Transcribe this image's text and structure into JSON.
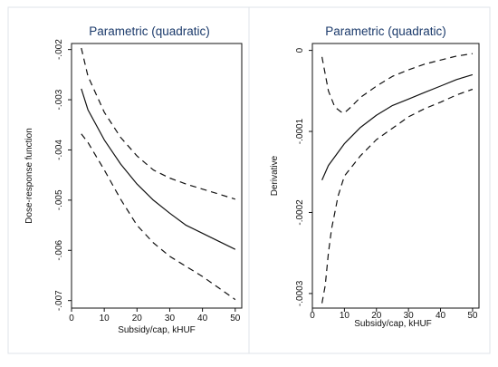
{
  "chart_data": [
    {
      "type": "line",
      "title": "Parametric (quadratic)",
      "xlabel": "Subsidy/cap, kHUF",
      "ylabel": "Dose-response function",
      "xlim": [
        0,
        52
      ],
      "ylim": [
        -0.00715,
        -0.00188
      ],
      "x_ticks": [
        0,
        10,
        20,
        30,
        40,
        50
      ],
      "x_tick_labels": [
        "0",
        "10",
        "20",
        "30",
        "40",
        "50"
      ],
      "y_ticks": [
        -0.007,
        -0.006,
        -0.005,
        -0.004,
        -0.003,
        -0.002
      ],
      "y_tick_labels": [
        "-.007",
        "-.006",
        "-.005",
        "-.004",
        "-.003",
        "-.002"
      ],
      "grid": false,
      "series": [
        {
          "style": "solid",
          "x": [
            3,
            5,
            10,
            15,
            20,
            25,
            30,
            35,
            40,
            45,
            50
          ],
          "y": [
            -0.00278,
            -0.0032,
            -0.0038,
            -0.00428,
            -0.00468,
            -0.005,
            -0.00526,
            -0.0055,
            -0.00566,
            -0.00582,
            -0.00598
          ]
        },
        {
          "style": "dashed",
          "x": [
            3,
            5,
            10,
            15,
            20,
            25,
            30,
            35,
            40,
            45,
            50
          ],
          "y": [
            -0.00197,
            -0.00253,
            -0.00325,
            -0.00375,
            -0.00412,
            -0.0044,
            -0.00456,
            -0.00468,
            -0.00478,
            -0.00488,
            -0.00498
          ]
        },
        {
          "style": "dashed",
          "x": [
            3,
            5,
            10,
            15,
            20,
            25,
            30,
            35,
            40,
            45,
            50
          ],
          "y": [
            -0.00368,
            -0.00385,
            -0.0044,
            -0.00498,
            -0.0055,
            -0.00585,
            -0.00612,
            -0.00632,
            -0.00652,
            -0.00675,
            -0.00698
          ]
        }
      ]
    },
    {
      "type": "line",
      "title": "Parametric (quadratic)",
      "xlabel": "Subsidy/cap, kHUF",
      "ylabel": "Derivative",
      "xlim": [
        0,
        52
      ],
      "ylim": [
        -0.000318,
        8.5e-06
      ],
      "x_ticks": [
        0,
        10,
        20,
        30,
        40,
        50
      ],
      "x_tick_labels": [
        "0",
        "10",
        "20",
        "30",
        "40",
        "50"
      ],
      "y_ticks": [
        -0.0003,
        -0.0002,
        -0.0001,
        0
      ],
      "y_tick_labels": [
        "-.0003",
        "-.0002",
        "-.0001",
        "0"
      ],
      "grid": false,
      "series": [
        {
          "style": "solid",
          "x": [
            3,
            5,
            10,
            15,
            20,
            25,
            30,
            35,
            40,
            45,
            50
          ],
          "y": [
            -0.00016,
            -0.000142,
            -0.000115,
            -9.5e-05,
            -8e-05,
            -6.8e-05,
            -6e-05,
            -5.2e-05,
            -4.4e-05,
            -3.6e-05,
            -3e-05
          ]
        },
        {
          "style": "dashed",
          "x": [
            3,
            5,
            7,
            9,
            10,
            12,
            15,
            20,
            25,
            30,
            35,
            40,
            45,
            50
          ],
          "y": [
            -8e-06,
            -5e-05,
            -7e-05,
            -7.6e-05,
            -7.7e-05,
            -7e-05,
            -5.8e-05,
            -4.4e-05,
            -3.2e-05,
            -2.4e-05,
            -1.7e-05,
            -1.2e-05,
            -7e-06,
            -4e-06
          ]
        },
        {
          "style": "dashed",
          "x": [
            3,
            4,
            5,
            6,
            7,
            8,
            10,
            15,
            20,
            25,
            30,
            35,
            40,
            45,
            50
          ],
          "y": [
            -0.000312,
            -0.00029,
            -0.00025,
            -0.00022,
            -0.0002,
            -0.00018,
            -0.000155,
            -0.00013,
            -0.00011,
            -9.6e-05,
            -8.2e-05,
            -7.2e-05,
            -6.4e-05,
            -5.5e-05,
            -4.8e-05
          ]
        }
      ]
    }
  ]
}
